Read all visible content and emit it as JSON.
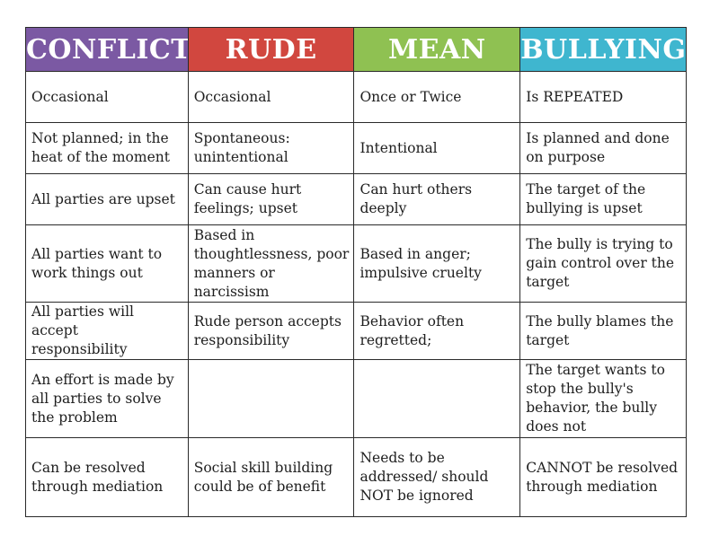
{
  "columns": [
    {
      "label": "CONFLICT",
      "color": "#7b59a3"
    },
    {
      "label": "RUDE",
      "color": "#d1473f"
    },
    {
      "label": "MEAN",
      "color": "#8fc152"
    },
    {
      "label": "BULLYING",
      "color": "#3fb6cf"
    }
  ],
  "rows": [
    [
      "Occasional",
      "Occasional",
      "Once or Twice",
      "Is REPEATED"
    ],
    [
      "Not planned; in the\nheat of the moment",
      "Spontaneous:\nunintentional",
      "Intentional",
      "Is planned and done\non purpose"
    ],
    [
      "All parties are upset",
      "Can cause hurt\nfeelings; upset",
      "Can hurt others\ndeeply",
      "The target of the\nbullying is upset"
    ],
    [
      "All parties want to\nwork things out",
      "Based in\nthoughtlessness, poor\nmanners or\nnarcissism",
      "Based in anger;\nimpulsive cruelty",
      "The bully is trying to\ngain control over the\ntarget"
    ],
    [
      "All parties will accept\nresponsibility",
      "Rude person accepts\nresponsibility",
      "Behavior often\nregretted;",
      "The bully blames the\ntarget"
    ],
    [
      "An effort is made by\nall parties to solve\nthe problem",
      "",
      "",
      "The target wants to\nstop the bully's\nbehavior, the bully\ndoes not"
    ],
    [
      "Can be resolved\nthrough mediation",
      "Social skill building\ncould be of benefit",
      "Needs to be\naddressed/ should\nNOT be ignored",
      "CANNOT be resolved\nthrough mediation"
    ]
  ]
}
